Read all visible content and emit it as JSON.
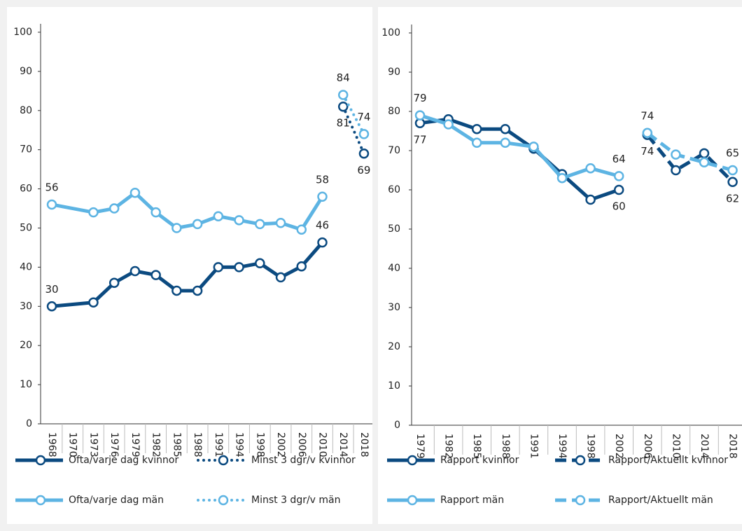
{
  "chart_data": [
    {
      "type": "line",
      "categories": [
        "1968",
        "1970",
        "1973",
        "1976",
        "1979",
        "1982",
        "1985",
        "1988",
        "1991",
        "1994",
        "1998",
        "2002",
        "2006",
        "2010",
        "2014",
        "2018"
      ],
      "ylim": [
        0,
        100
      ],
      "yticks": [
        0,
        10,
        20,
        30,
        40,
        50,
        60,
        70,
        80,
        90,
        100
      ],
      "series": [
        {
          "name": "Ofta/varje dag kvinnor",
          "color": "#0b4a80",
          "dash": "solid",
          "x": [
            1968,
            1973,
            1976,
            1979,
            1982,
            1985,
            1988,
            1991,
            1994,
            1998,
            2002,
            2006,
            2010
          ],
          "values": [
            30,
            31,
            36,
            39,
            38,
            34,
            34,
            40,
            40,
            41,
            37.4,
            40.2,
            46.3
          ],
          "value_labels": [
            "30",
            null,
            null,
            null,
            null,
            null,
            null,
            null,
            null,
            null,
            null,
            null,
            "46"
          ]
        },
        {
          "name": "Minst 3 dgr/v kvinnor",
          "color": "#0b4a80",
          "dash": "dotted",
          "x": [
            2014,
            2018
          ],
          "values": [
            81,
            69
          ],
          "value_labels": [
            "81",
            "69"
          ]
        },
        {
          "name": "Ofta/varje dag män",
          "color": "#5db4e3",
          "dash": "solid",
          "x": [
            1968,
            1973,
            1976,
            1979,
            1982,
            1985,
            1988,
            1991,
            1994,
            1998,
            2002,
            2006,
            2010
          ],
          "values": [
            56,
            54,
            55,
            59,
            54,
            50,
            51,
            53,
            52,
            51,
            51.3,
            49.6,
            58
          ],
          "value_labels": [
            "56",
            null,
            null,
            null,
            null,
            null,
            null,
            null,
            null,
            null,
            null,
            null,
            "58"
          ]
        },
        {
          "name": "Minst 3 dgr/v män",
          "color": "#5db4e3",
          "dash": "dotted",
          "x": [
            2014,
            2018
          ],
          "values": [
            84,
            74
          ],
          "value_labels": [
            "84",
            "74"
          ]
        }
      ]
    },
    {
      "type": "line",
      "categories": [
        "1979",
        "1982",
        "1985",
        "1988",
        "1991",
        "1994",
        "1998",
        "2002",
        "2006",
        "2010",
        "2014",
        "2018"
      ],
      "ylim": [
        0,
        100
      ],
      "yticks": [
        0,
        10,
        20,
        30,
        40,
        50,
        60,
        70,
        80,
        90,
        100
      ],
      "series": [
        {
          "name": "Rapport kvinnor",
          "color": "#0b4a80",
          "dash": "solid",
          "x": [
            1979,
            1982,
            1985,
            1988,
            1991,
            1994,
            1998,
            2002
          ],
          "values": [
            77,
            78,
            75.5,
            75.5,
            70.5,
            64,
            57.5,
            60
          ],
          "value_labels": [
            "77",
            null,
            null,
            null,
            null,
            null,
            null,
            "60"
          ]
        },
        {
          "name": "Rapport/Aktuellt kvinnor",
          "color": "#0b4a80",
          "dash": "dashed",
          "x": [
            2006,
            2010,
            2014,
            2018
          ],
          "values": [
            74,
            65,
            69.3,
            62
          ],
          "value_labels": [
            "74",
            null,
            null,
            "62"
          ]
        },
        {
          "name": "Rapport män",
          "color": "#5db4e3",
          "dash": "solid",
          "x": [
            1979,
            1982,
            1985,
            1988,
            1991,
            1994,
            1998,
            2002
          ],
          "values": [
            79,
            76.7,
            72,
            72,
            71,
            63,
            65.5,
            63.5
          ],
          "value_labels": [
            "79",
            null,
            null,
            null,
            null,
            null,
            null,
            "64"
          ]
        },
        {
          "name": "Rapport/Aktuellt män",
          "color": "#5db4e3",
          "dash": "dashed",
          "x": [
            2006,
            2010,
            2014,
            2018
          ],
          "values": [
            74.5,
            69,
            67,
            65
          ],
          "value_labels": [
            "74",
            null,
            null,
            "65"
          ]
        }
      ]
    }
  ]
}
